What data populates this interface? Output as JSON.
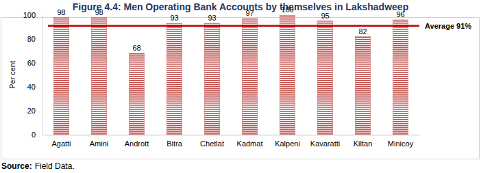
{
  "chart_data": {
    "type": "bar",
    "title": "Figure 4.4: Men Operating Bank Accounts by themselves in Lakshadweep",
    "y_label": "Per cent",
    "categories": [
      "Agatti",
      "Amini",
      "Andrott",
      "Bitra",
      "Chetlat",
      "Kadmat",
      "Kalpeni",
      "Kavaratti",
      "Kiltan",
      "Minicoy"
    ],
    "values": [
      98,
      98,
      68,
      93,
      93,
      97,
      100,
      95,
      82,
      96
    ],
    "color": "#c0504d",
    "ylim": [
      0,
      100
    ],
    "yticks": [
      0,
      20,
      40,
      60,
      80,
      100
    ],
    "grid": false,
    "data_labels": true,
    "reference_line": {
      "value": 91,
      "label": "Average 91%",
      "color": "#c00000"
    },
    "source_label": "Source:",
    "source": "Field Data."
  }
}
